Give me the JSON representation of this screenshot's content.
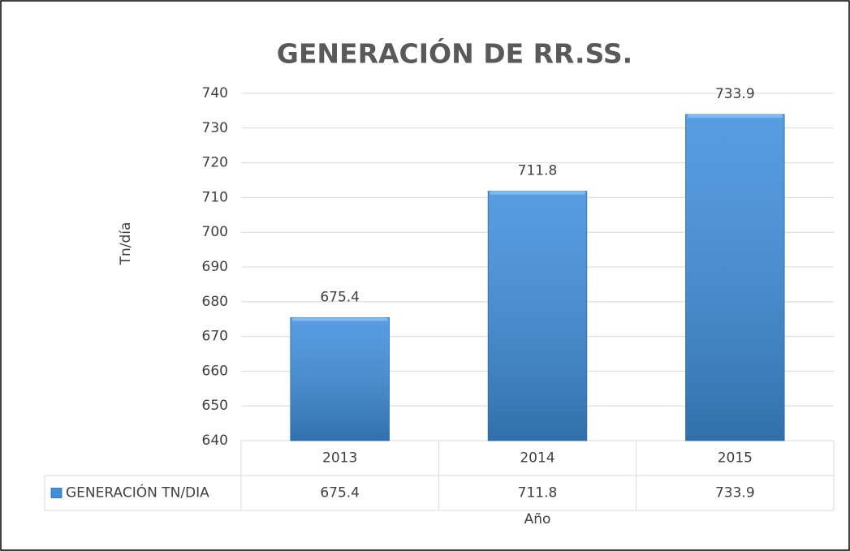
{
  "chart_data": {
    "type": "bar",
    "title": "GENERACIÓN DE RR.SS.",
    "categories": [
      "2013",
      "2014",
      "2015"
    ],
    "series": [
      {
        "name": "GENERACIÓN TN/DIA",
        "color": "#3f8fdc",
        "values": [
          675.4,
          711.8,
          733.9
        ]
      }
    ],
    "ylim": [
      640,
      740
    ],
    "yticks": [
      640,
      650,
      660,
      670,
      680,
      690,
      700,
      710,
      720,
      730,
      740
    ],
    "y_label": "Tn/día",
    "x_label": "Año",
    "grid": true,
    "data_table": true
  }
}
